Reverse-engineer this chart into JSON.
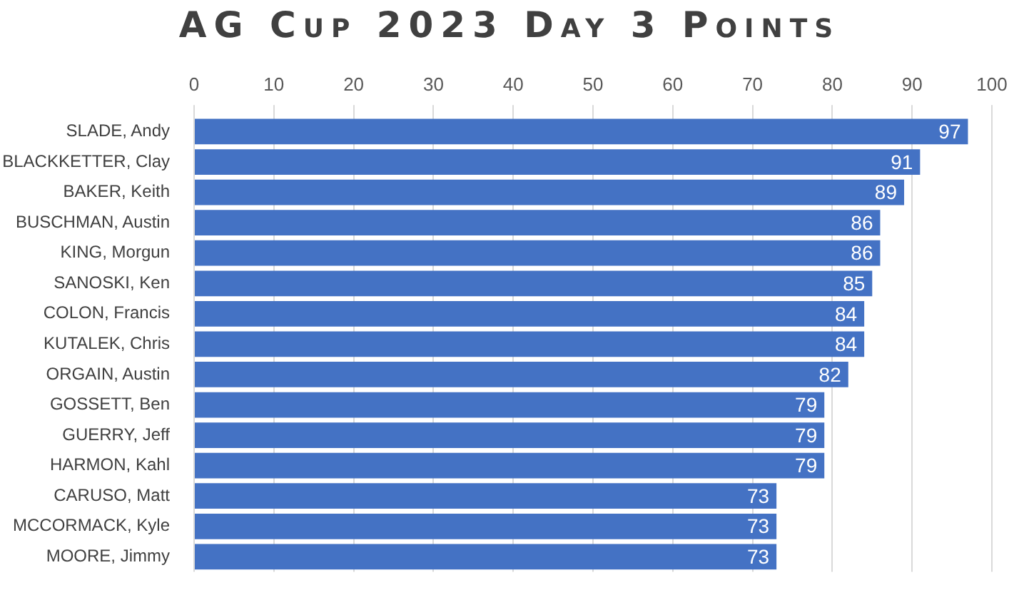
{
  "chart_data": {
    "type": "bar",
    "orientation": "horizontal",
    "title": "AG Cup 2023 Day 3 Points",
    "categories": [
      "SLADE, Andy",
      "BLACKKETTER, Clay",
      "BAKER, Keith",
      "BUSCHMAN, Austin",
      "KING, Morgun",
      "SANOSKI, Ken",
      "COLON, Francis",
      "KUTALEK, Chris",
      "ORGAIN, Austin",
      "GOSSETT, Ben",
      "GUERRY, Jeff",
      "HARMON, Kahl",
      "CARUSO, Matt",
      "MCCORMACK, Kyle",
      "MOORE, Jimmy"
    ],
    "values": [
      97,
      91,
      89,
      86,
      86,
      85,
      84,
      84,
      82,
      79,
      79,
      79,
      73,
      73,
      73
    ],
    "color": "#4472c4",
    "xlim": [
      0,
      100
    ],
    "xticks": [
      0,
      10,
      20,
      30,
      40,
      50,
      60,
      70,
      80,
      90,
      100
    ],
    "grid": "x",
    "data_labels": true
  }
}
